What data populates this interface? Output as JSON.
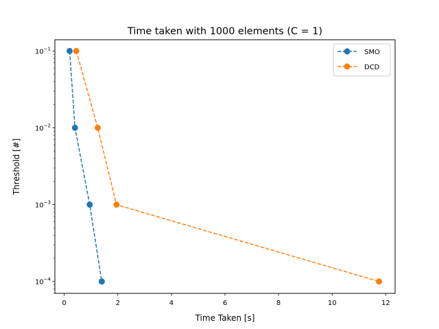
{
  "chart_data": {
    "type": "line",
    "title": "Time taken with 1000 elements (C = 1)",
    "xlabel": "Time Taken [s]",
    "ylabel": "Threshold [#]",
    "xlim": [
      -0.35,
      12.35
    ],
    "ylim": [
      7e-05,
      0.14
    ],
    "yscale": "log",
    "x_ticks": [
      0,
      2,
      4,
      6,
      8,
      10,
      12
    ],
    "x_tick_labels": [
      "0",
      "2",
      "4",
      "6",
      "8",
      "10",
      "12"
    ],
    "y_ticks": [
      0.0001,
      0.001,
      0.01,
      0.1
    ],
    "y_tick_labels": [
      {
        "base": "10",
        "exp": "−4"
      },
      {
        "base": "10",
        "exp": "−3"
      },
      {
        "base": "10",
        "exp": "−2"
      },
      {
        "base": "10",
        "exp": "−1"
      }
    ],
    "grid": false,
    "legend_position": "top-right",
    "series": [
      {
        "name": "SMO",
        "color": "#1f77b4",
        "linestyle": "dashed",
        "marker": "circle",
        "x": [
          0.2,
          0.4,
          0.95,
          1.4
        ],
        "y": [
          0.1,
          0.01,
          0.001,
          0.0001
        ]
      },
      {
        "name": "DCD",
        "color": "#ff7f0e",
        "linestyle": "dashed",
        "marker": "circle",
        "x": [
          0.45,
          1.25,
          1.95,
          11.75
        ],
        "y": [
          0.1,
          0.01,
          0.001,
          0.0001
        ]
      }
    ]
  }
}
